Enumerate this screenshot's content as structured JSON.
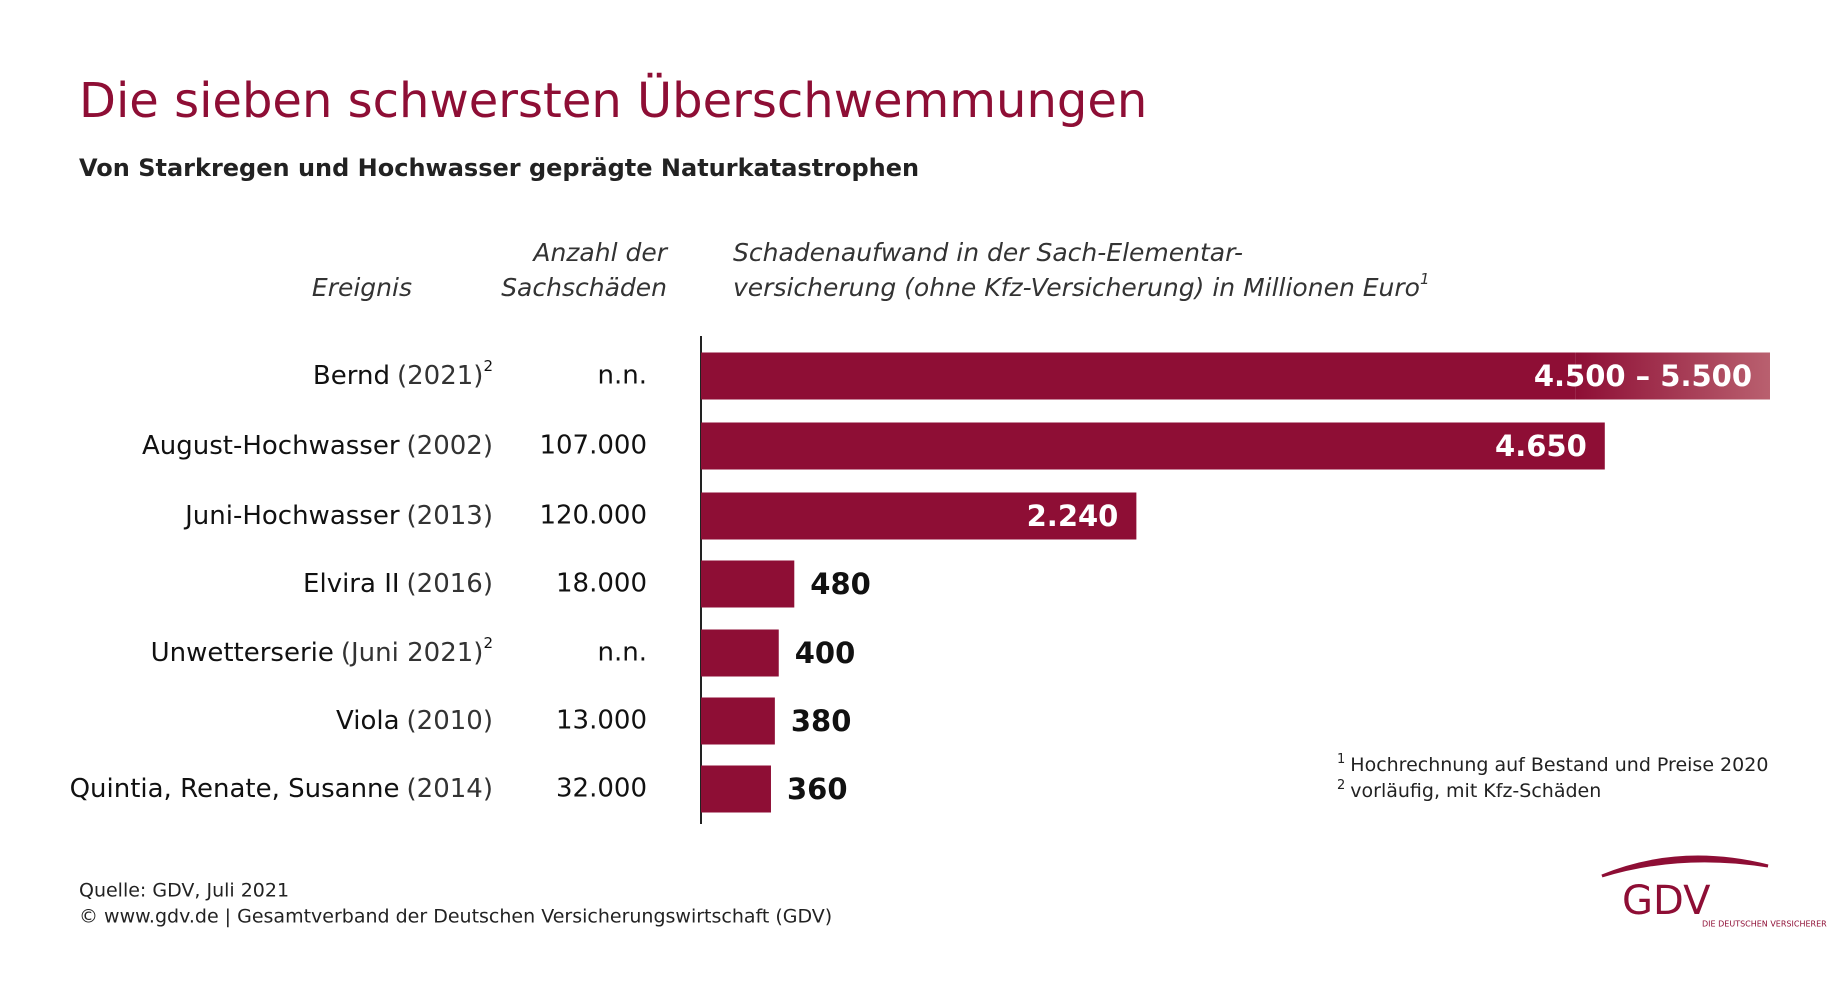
{
  "chart_data": {
    "type": "bar",
    "title": "Die sieben schwersten Überschwemmungen",
    "subtitle": "Von Starkregen und Hochwasser geprägte Naturkatastrophen",
    "headers": {
      "event": "Ereignis",
      "count": [
        "Anzahl der",
        "Sachschäden"
      ],
      "value": [
        "Schadenaufwand in der Sach-Elementar-",
        "versicherung (ohne Kfz-Versicherung) in Millionen Euro"
      ],
      "value_note": "1"
    },
    "categories": [
      "Bernd",
      "August-Hochwasser",
      "Juni-Hochwasser",
      "Elvira II",
      "Unwetterserie",
      "Viola",
      "Quintia, Renate, Susanne"
    ],
    "years": [
      "(2021)",
      "(2002)",
      "(2013)",
      "(2016)",
      "(Juni 2021)",
      "(2010)",
      "(2014)"
    ],
    "notes": [
      "2",
      null,
      null,
      null,
      "2",
      null,
      null
    ],
    "counts": [
      "n.n.",
      "107.000",
      "120.000",
      "18.000",
      "n.n.",
      "13.000",
      "32.000"
    ],
    "values": [
      4500,
      4650,
      2240,
      480,
      400,
      380,
      360
    ],
    "range_high": [
      5500,
      null,
      null,
      null,
      null,
      null,
      null
    ],
    "value_labels": [
      "4.500 – 5.500",
      "4.650",
      "2.240",
      "480",
      "400",
      "380",
      "360"
    ],
    "color": "#8e0e35",
    "range_color": "#b9606f",
    "xlim": [
      0,
      5500
    ],
    "footnotes": [
      {
        "mark": "1",
        "text": "Hochrechnung auf Bestand und Preise 2020"
      },
      {
        "mark": "2",
        "text": "vorläufig, mit Kfz-Schäden"
      }
    ],
    "source": [
      "Quelle: GDV, Juli 2021",
      "© www.gdv.de | Gesamtverband der Deutschen Versicherungswirtschaft (GDV)"
    ],
    "logo": {
      "name": "GDV",
      "tagline": "DIE DEUTSCHEN VERSICHERER"
    }
  }
}
